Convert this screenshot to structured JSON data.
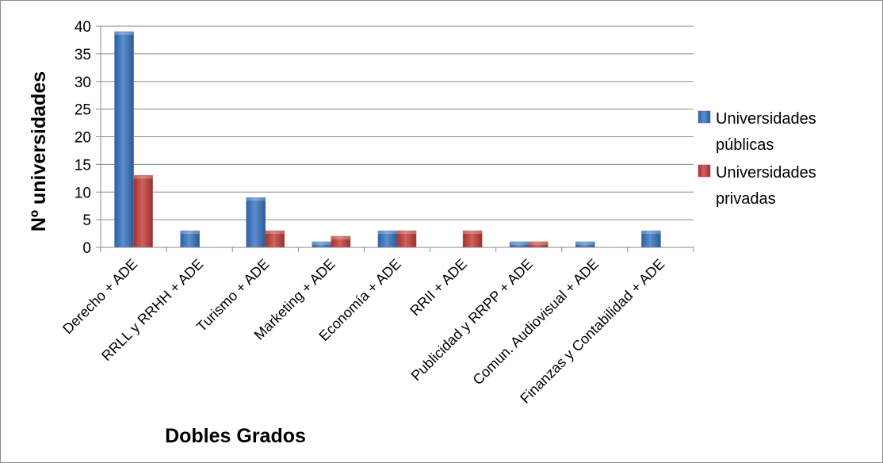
{
  "chart_data": {
    "type": "bar",
    "title": "",
    "xlabel": "Dobles Grados",
    "ylabel": "Nº universidades",
    "ylim": [
      0,
      40
    ],
    "yticks": [
      0,
      5,
      10,
      15,
      20,
      25,
      30,
      35,
      40
    ],
    "grid": true,
    "legend_position": "right",
    "categories": [
      "Derecho + ADE",
      "RRLL y RRHH + ADE",
      "Turismo + ADE",
      "Marketing + ADE",
      "Economía + ADE",
      "RRII + ADE",
      "Publicidad y RRPP + ADE",
      "Comun. Audiovisual + ADE",
      "Finanzas y Contabilidad + ADE"
    ],
    "series": [
      {
        "name": "Universidades públicas",
        "legend_lines": [
          "Universidades",
          "públicas"
        ],
        "color": "#4a7ebb",
        "values": [
          39,
          3,
          9,
          1,
          3,
          0,
          1,
          1,
          3
        ]
      },
      {
        "name": "Universidades privadas",
        "legend_lines": [
          "Universidades",
          "privadas"
        ],
        "color": "#be4b48",
        "values": [
          13,
          0,
          3,
          2,
          3,
          3,
          1,
          0,
          0
        ]
      }
    ]
  }
}
